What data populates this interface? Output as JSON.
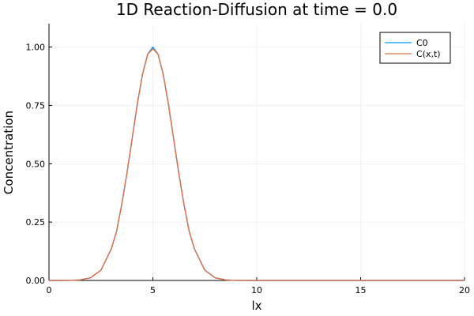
{
  "chart_data": {
    "type": "line",
    "title": "1D Reaction-Diffusion at time = 0.0",
    "xlabel": "lx",
    "ylabel": "Concentration",
    "xlim": [
      0,
      20
    ],
    "ylim": [
      0,
      1.1
    ],
    "xticks": [
      0,
      5,
      10,
      15,
      20
    ],
    "yticks": [
      0.0,
      0.25,
      0.5,
      0.75,
      1.0
    ],
    "xtick_labels": [
      "0",
      "5",
      "10",
      "15",
      "20"
    ],
    "ytick_labels": [
      "0.00",
      "0.25",
      "0.50",
      "0.75",
      "1.00"
    ],
    "grid": true,
    "legend_position": "top-right",
    "series": [
      {
        "name": "C0",
        "color": "#009AFA",
        "x": [
          0,
          0.5,
          1,
          1.5,
          2,
          2.5,
          3,
          3.25,
          3.5,
          3.75,
          4,
          4.25,
          4.5,
          4.75,
          5,
          5.25,
          5.5,
          5.75,
          6,
          6.25,
          6.5,
          6.75,
          7,
          7.5,
          8,
          8.5,
          9,
          9.5,
          10,
          12,
          14,
          16,
          18,
          20
        ],
        "y": [
          0.0,
          0.0,
          0.0003,
          0.0022,
          0.0111,
          0.0439,
          0.1353,
          0.2096,
          0.3247,
          0.4578,
          0.6065,
          0.7548,
          0.8825,
          0.9692,
          1.0,
          0.9692,
          0.8825,
          0.7548,
          0.6065,
          0.4578,
          0.3247,
          0.2096,
          0.1353,
          0.0439,
          0.0111,
          0.0022,
          0.0003,
          0.0,
          0.0,
          0.0,
          0.0,
          0.0,
          0.0,
          0.0
        ]
      },
      {
        "name": "C(x,t)",
        "color": "#E26F46",
        "x": [
          0,
          0.5,
          1,
          1.5,
          2,
          2.5,
          3,
          3.25,
          3.5,
          3.75,
          4,
          4.25,
          4.5,
          4.75,
          5,
          5.25,
          5.5,
          5.75,
          6,
          6.25,
          6.5,
          6.75,
          7,
          7.5,
          8,
          8.5,
          9,
          9.5,
          10,
          12,
          14,
          16,
          18,
          20
        ],
        "y": [
          0.0,
          0.0,
          0.0003,
          0.0022,
          0.0111,
          0.0439,
          0.1353,
          0.2096,
          0.3247,
          0.4578,
          0.6065,
          0.7548,
          0.8825,
          0.9692,
          0.993,
          0.9692,
          0.8825,
          0.7548,
          0.6065,
          0.4578,
          0.3247,
          0.2096,
          0.1353,
          0.0439,
          0.0111,
          0.0022,
          0.0003,
          0.0,
          0.0,
          0.0,
          0.0,
          0.0,
          0.0,
          0.0
        ]
      }
    ]
  }
}
